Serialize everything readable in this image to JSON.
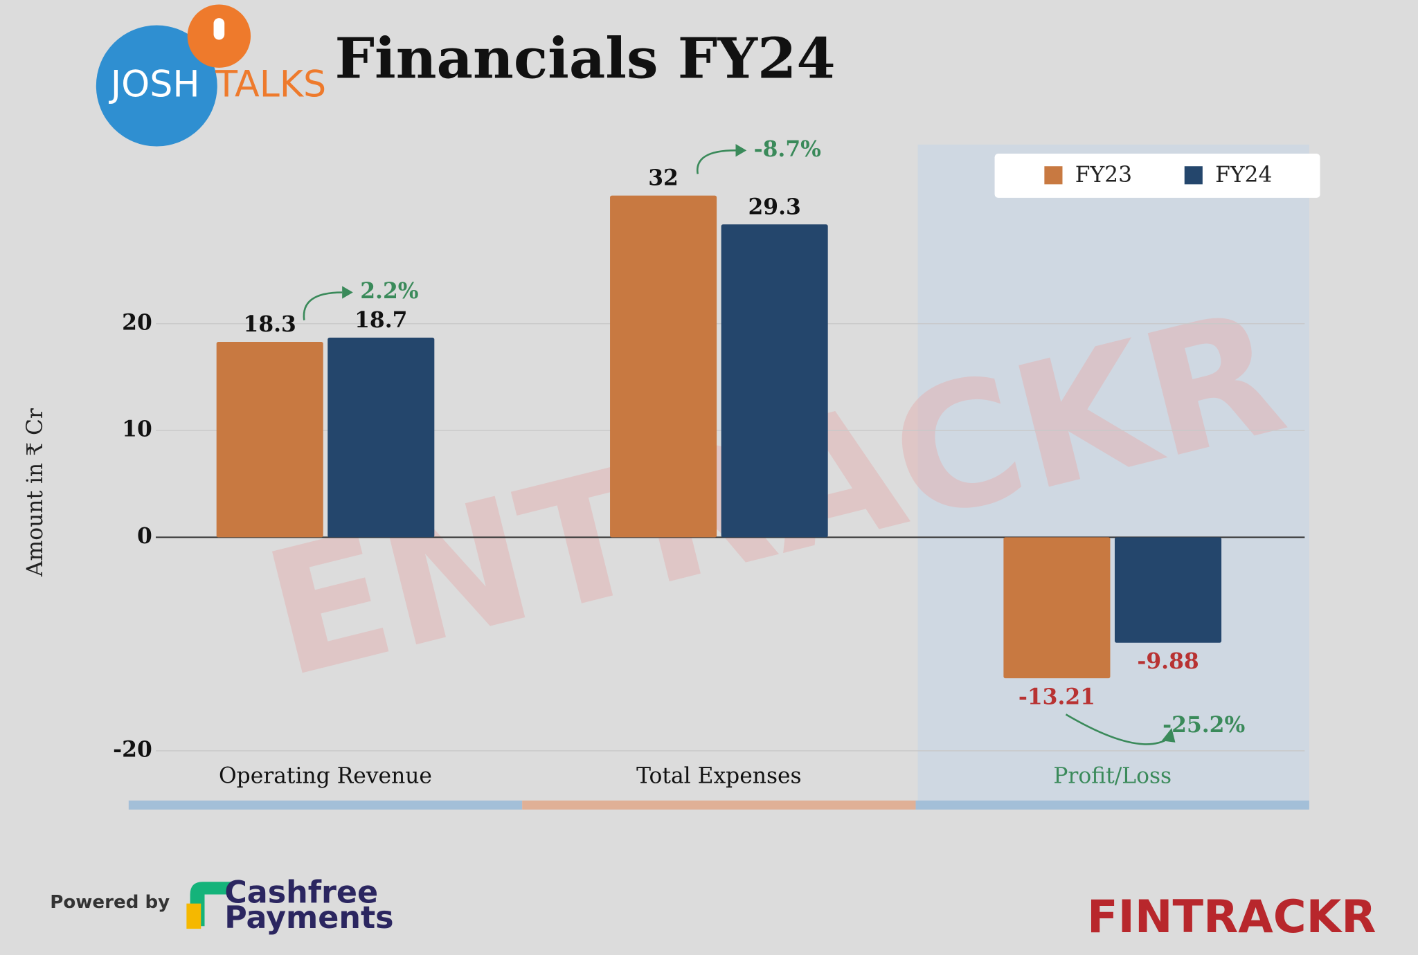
{
  "chart_data": {
    "type": "bar",
    "title": "Financials FY24",
    "y_label": "Amount in ₹ Cr",
    "categories": [
      "Operating Revenue",
      "Total Expenses",
      "Profit/Loss"
    ],
    "series": [
      {
        "name": "FY23",
        "color": "#c87941",
        "values": [
          18.3,
          32,
          -13.21
        ]
      },
      {
        "name": "FY24",
        "color": "#24466c",
        "values": [
          18.7,
          29.3,
          -9.88
        ]
      }
    ],
    "annotations": [
      "2.2%",
      "-8.7%",
      "-25.2%"
    ],
    "ylim": [
      -20,
      35
    ],
    "yticks": [
      20,
      10,
      0,
      -20
    ],
    "grid": true,
    "legend": "top-right",
    "branding": {
      "logo_left": "JOSH",
      "logo_right": "TALKS",
      "powered_by": "Powered by",
      "sponsor_line1": "Cashfree",
      "sponsor_line2": "Payments",
      "publisher": "FINTRACKR",
      "watermark": "ENTRACKR"
    }
  }
}
